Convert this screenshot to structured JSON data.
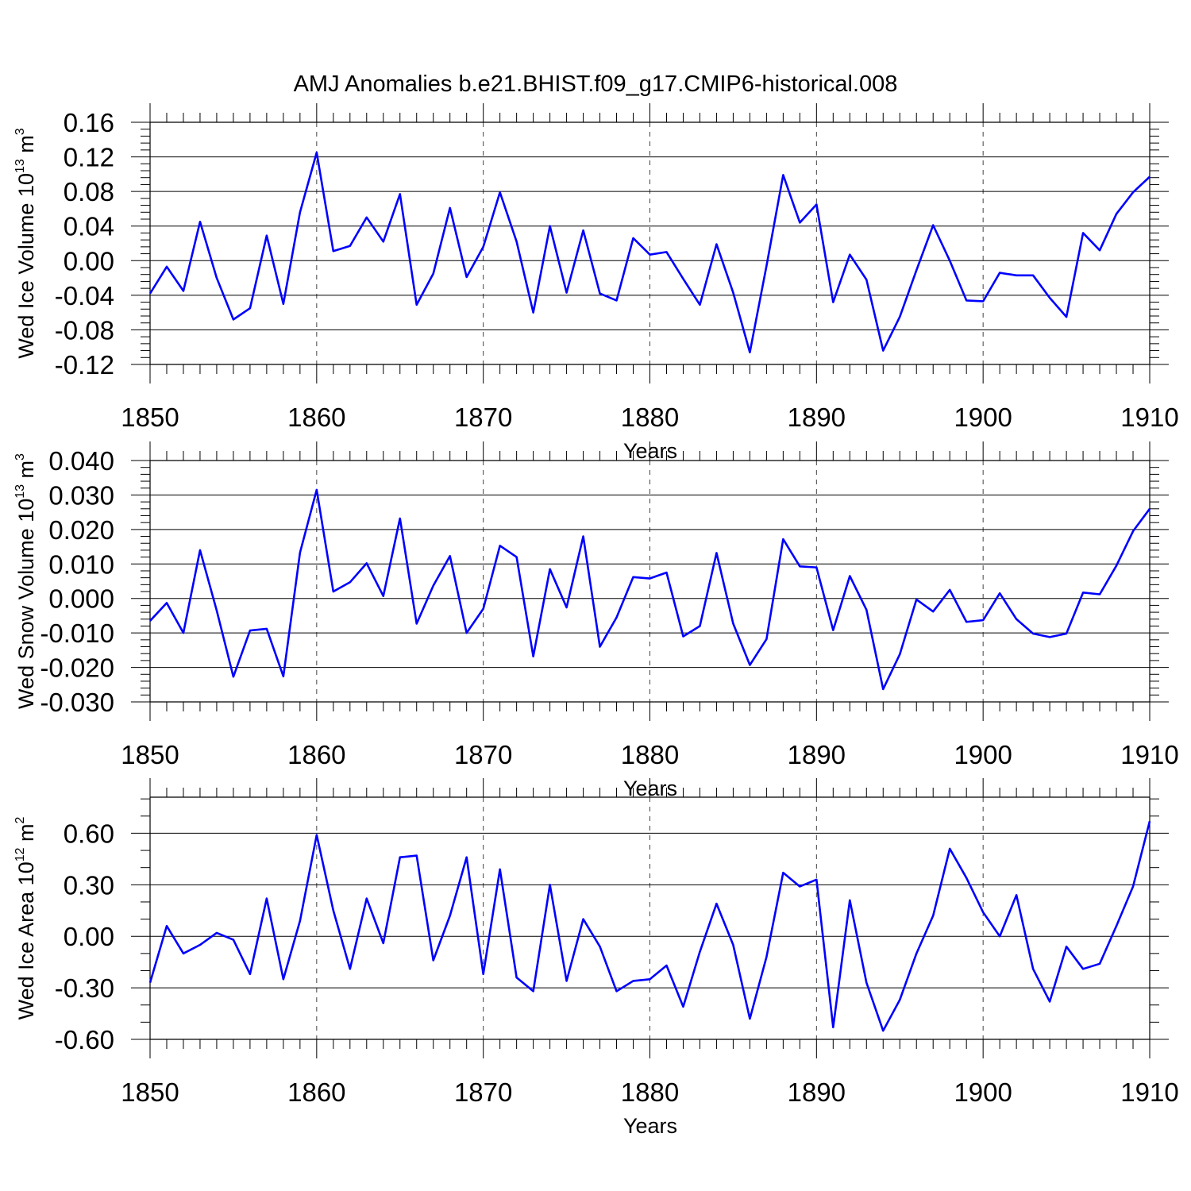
{
  "title": "AMJ Anomalies b.e21.BHIST.f09_g17.CMIP6-historical.008",
  "colors": {
    "line": "#0000ff",
    "axes": "#000000"
  },
  "chart_data": [
    {
      "type": "line",
      "name": "ice-volume",
      "ylabel": "Wed Ice Volume 10",
      "ylabel_exp": "13",
      "ylabel_unit": " m",
      "ylabel_unit_exp": "3",
      "xlabel": "Years",
      "xlim": [
        1850,
        1910
      ],
      "ylim": [
        -0.12,
        0.16
      ],
      "xticks": [
        1850,
        1860,
        1870,
        1880,
        1890,
        1900,
        1910
      ],
      "xtick_labels": [
        "1850",
        "1860",
        "1870",
        "1880",
        "1890",
        "1900",
        "1910"
      ],
      "yticks": [
        -0.12,
        -0.08,
        -0.04,
        0.0,
        0.04,
        0.08,
        0.12,
        0.16
      ],
      "ytick_labels": [
        "-0.12",
        "-0.08",
        "-0.04",
        "0.00",
        "0.04",
        "0.08",
        "0.12",
        "0.16"
      ],
      "yminor_step": 0.008,
      "x_start": 1850,
      "values": [
        -0.038,
        -0.007,
        -0.035,
        0.045,
        -0.02,
        -0.068,
        -0.055,
        0.029,
        -0.05,
        0.056,
        0.125,
        0.011,
        0.017,
        0.05,
        0.022,
        0.077,
        -0.051,
        -0.015,
        0.061,
        -0.019,
        0.016,
        0.079,
        0.022,
        -0.06,
        0.04,
        -0.037,
        0.035,
        -0.038,
        -0.046,
        0.026,
        0.007,
        0.01,
        -0.021,
        -0.051,
        0.019,
        -0.037,
        -0.106,
        -0.006,
        0.099,
        0.044,
        0.065,
        -0.048,
        0.007,
        -0.022,
        -0.104,
        -0.065,
        -0.011,
        0.041,
        0.0,
        -0.046,
        -0.047,
        -0.014,
        -0.017,
        -0.017,
        -0.043,
        -0.065,
        0.032,
        0.012,
        0.054,
        0.079,
        0.097
      ]
    },
    {
      "type": "line",
      "name": "snow-volume",
      "ylabel": "Wed Snow Volume 10",
      "ylabel_exp": "13",
      "ylabel_unit": " m",
      "ylabel_unit_exp": "3",
      "xlabel": "Years",
      "xlim": [
        1850,
        1910
      ],
      "ylim": [
        -0.03,
        0.04
      ],
      "xticks": [
        1850,
        1860,
        1870,
        1880,
        1890,
        1900,
        1910
      ],
      "xtick_labels": [
        "1850",
        "1860",
        "1870",
        "1880",
        "1890",
        "1900",
        "1910"
      ],
      "yticks": [
        -0.03,
        -0.02,
        -0.01,
        0.0,
        0.01,
        0.02,
        0.03,
        0.04
      ],
      "ytick_labels": [
        "-0.030",
        "-0.020",
        "-0.010",
        "0.000",
        "0.010",
        "0.020",
        "0.030",
        "0.040"
      ],
      "yminor_step": 0.002,
      "x_start": 1850,
      "values": [
        -0.0065,
        -0.0013,
        -0.01,
        0.014,
        -0.0035,
        -0.0227,
        -0.0093,
        -0.0088,
        -0.0226,
        0.0133,
        0.0315,
        0.002,
        0.0047,
        0.0102,
        0.0007,
        0.0232,
        -0.0073,
        0.0037,
        0.0123,
        -0.01,
        -0.003,
        0.0153,
        0.012,
        -0.0168,
        0.0085,
        -0.0026,
        0.018,
        -0.014,
        -0.0055,
        0.0062,
        0.0058,
        0.0075,
        -0.011,
        -0.008,
        0.0132,
        -0.0073,
        -0.0193,
        -0.0118,
        0.0172,
        0.0093,
        0.009,
        -0.0092,
        0.0065,
        -0.0033,
        -0.0263,
        -0.0162,
        -0.0003,
        -0.0038,
        0.0025,
        -0.0068,
        -0.0063,
        0.0015,
        -0.006,
        -0.0102,
        -0.0112,
        -0.0102,
        0.0017,
        0.0012,
        0.0095,
        0.0195,
        0.026
      ]
    },
    {
      "type": "line",
      "name": "ice-area",
      "ylabel": "Wed Ice Area 10",
      "ylabel_exp": "12",
      "ylabel_unit": " m",
      "ylabel_unit_exp": "2",
      "xlabel": "Years",
      "xlim": [
        1850,
        1910
      ],
      "ylim": [
        -0.6,
        0.81
      ],
      "xticks": [
        1850,
        1860,
        1870,
        1880,
        1890,
        1900,
        1910
      ],
      "xtick_labels": [
        "1850",
        "1860",
        "1870",
        "1880",
        "1890",
        "1900",
        "1910"
      ],
      "yticks": [
        -0.6,
        -0.3,
        0.0,
        0.3,
        0.6
      ],
      "ytick_labels": [
        "-0.60",
        "-0.30",
        "0.00",
        "0.30",
        "0.60"
      ],
      "yminor_step": 0.1,
      "x_start": 1850,
      "values": [
        -0.27,
        0.06,
        -0.1,
        -0.05,
        0.02,
        -0.02,
        -0.22,
        0.22,
        -0.25,
        0.09,
        0.59,
        0.15,
        -0.19,
        0.22,
        -0.04,
        0.46,
        0.47,
        -0.14,
        0.12,
        0.46,
        -0.22,
        0.39,
        -0.24,
        -0.32,
        0.3,
        -0.26,
        0.1,
        -0.06,
        -0.32,
        -0.26,
        -0.25,
        -0.17,
        -0.41,
        -0.09,
        0.19,
        -0.05,
        -0.48,
        -0.12,
        0.37,
        0.29,
        0.33,
        -0.53,
        0.21,
        -0.27,
        -0.55,
        -0.37,
        -0.1,
        0.12,
        0.51,
        0.34,
        0.14,
        0.0,
        0.24,
        -0.19,
        -0.38,
        -0.06,
        -0.19,
        -0.16,
        0.06,
        0.29,
        0.67
      ]
    }
  ]
}
